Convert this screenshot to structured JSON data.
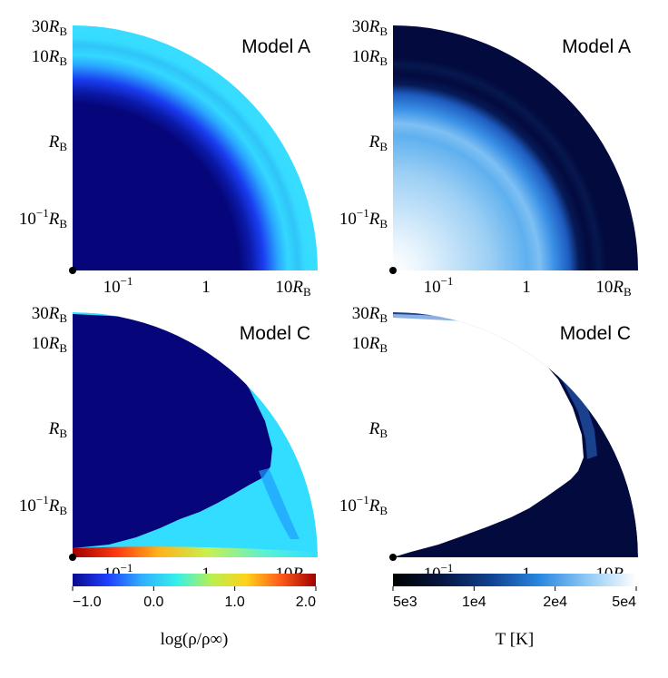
{
  "panels": [
    {
      "id": "a-density",
      "title": "Model A",
      "y_ticks": [
        "30",
        "10",
        "",
        "10−1"
      ],
      "x_ticks": [
        "10−1",
        "1",
        "10"
      ],
      "unit": "R",
      "unit_sub": "B"
    },
    {
      "id": "a-temperature",
      "title": "Model A",
      "y_ticks": [
        "30",
        "10",
        "",
        "10−1"
      ],
      "x_ticks": [
        "10−1",
        "1",
        "10"
      ],
      "unit": "R",
      "unit_sub": "B"
    },
    {
      "id": "c-density",
      "title": "Model C",
      "y_ticks": [
        "30",
        "10",
        "",
        "10−1"
      ],
      "x_ticks": [
        "10−1",
        "1",
        "10"
      ],
      "unit": "R",
      "unit_sub": "B"
    },
    {
      "id": "c-temperature",
      "title": "Model C",
      "y_ticks": [
        "30",
        "10",
        "",
        "10−1"
      ],
      "x_ticks": [
        "10−1",
        "1",
        "10"
      ],
      "unit": "R",
      "unit_sub": "B"
    }
  ],
  "colorbars": {
    "density": {
      "ticks": [
        "−1.0",
        "0.0",
        "1.0",
        "2.0"
      ],
      "label": "log(ρ/ρ∞)",
      "colors": [
        "#0a0a8c",
        "#1f3fff",
        "#2fb0ff",
        "#36f0e8",
        "#b8f050",
        "#ffd21a",
        "#ff5a1a",
        "#a00000"
      ]
    },
    "temperature": {
      "ticks": [
        "5e3",
        "1e4",
        "2e4",
        "5e4"
      ],
      "label": "T [K]",
      "colors": [
        "#000000",
        "#061640",
        "#10408f",
        "#2a86e0",
        "#8fcaf5",
        "#ffffff"
      ]
    }
  },
  "colors": {
    "deep_navy": "#030a3e",
    "density_low": "#06067a",
    "density_mid": "#1a3cf0",
    "density_cyan": "#33ddff",
    "temp_white": "#ffffff",
    "temp_blue": "#2c86e6"
  }
}
